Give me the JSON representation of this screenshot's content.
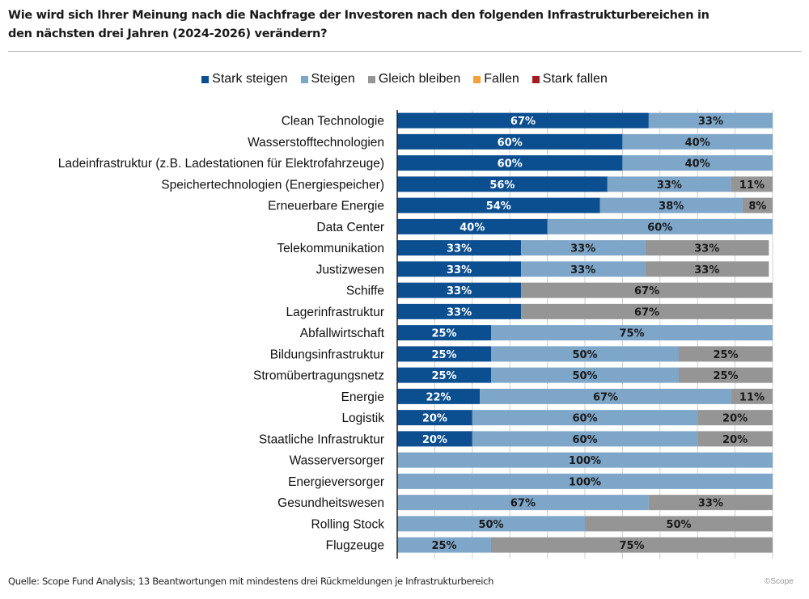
{
  "title": "Wie wird sich Ihrer Meinung nach die Nachfrage der Investoren nach den folgenden Infrastrukturbereichen in den nächsten drei Jahren (2024-2026) verändern?",
  "footer": "Quelle: Scope Fund Analysis; 13 Beantwortungen mit mindestens drei Rückmeldungen je Infrastrukturbereich",
  "copyright": "©Scope",
  "chart_data": {
    "type": "bar",
    "orientation": "horizontal",
    "stacked": true,
    "title": "Wie wird sich Ihrer Meinung nach die Nachfrage der Investoren nach den folgenden Infrastrukturbereichen in den nächsten drei Jahren (2024-2026) verändern?",
    "xlabel": "",
    "ylabel": "",
    "xlim": [
      0,
      100
    ],
    "unit": "%",
    "grid": true,
    "legend_position": "top",
    "categories": [
      "Clean Technologie",
      "Wasserstofftechnologien",
      "Ladeinfrastruktur (z.B. Ladestationen für Elektrofahrzeuge)",
      "Speichertechnologien (Energiespeicher)",
      "Erneuerbare Energie",
      "Data Center",
      "Telekommunikation",
      "Justizwesen",
      "Schiffe",
      "Lagerinfrastruktur",
      "Abfallwirtschaft",
      "Bildungsinfrastruktur",
      "Stromübertragungsnetz",
      "Energie",
      "Logistik",
      "Staatliche Infrastruktur",
      "Wasserversorger",
      "Energieversorger",
      "Gesundheitswesen",
      "Rolling Stock",
      "Flugzeuge"
    ],
    "series": [
      {
        "name": "Stark steigen",
        "color": "#0b4f91",
        "label_color": "#ffffff",
        "values": [
          67,
          60,
          60,
          56,
          54,
          40,
          33,
          33,
          33,
          33,
          25,
          25,
          25,
          22,
          20,
          20,
          0,
          0,
          0,
          0,
          0
        ]
      },
      {
        "name": "Steigen",
        "color": "#7ea6c9",
        "label_color": "#1a1a1a",
        "values": [
          33,
          40,
          40,
          33,
          38,
          60,
          33,
          33,
          0,
          0,
          75,
          50,
          50,
          67,
          60,
          60,
          100,
          100,
          67,
          50,
          25
        ]
      },
      {
        "name": "Gleich bleiben",
        "color": "#959595",
        "label_color": "#1a1a1a",
        "values": [
          0,
          0,
          0,
          11,
          8,
          0,
          33,
          33,
          67,
          67,
          0,
          25,
          25,
          11,
          20,
          20,
          0,
          0,
          33,
          50,
          75
        ]
      },
      {
        "name": "Fallen",
        "color": "#f4a03a",
        "label_color": "#1a1a1a",
        "values": [
          0,
          0,
          0,
          0,
          0,
          0,
          0,
          0,
          0,
          0,
          0,
          0,
          0,
          0,
          0,
          0,
          0,
          0,
          0,
          0,
          0
        ]
      },
      {
        "name": "Stark fallen",
        "color": "#a11d1d",
        "label_color": "#ffffff",
        "values": [
          0,
          0,
          0,
          0,
          0,
          0,
          0,
          0,
          0,
          0,
          0,
          0,
          0,
          0,
          0,
          0,
          0,
          0,
          0,
          0,
          0
        ]
      }
    ]
  }
}
